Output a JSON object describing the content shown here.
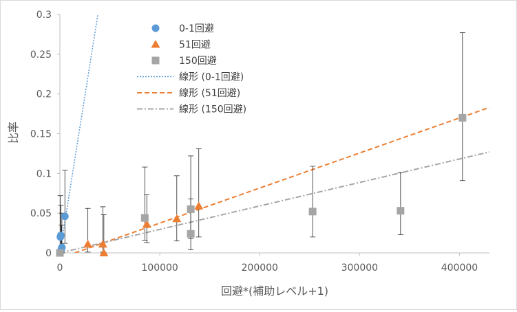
{
  "chart_data": {
    "type": "scatter",
    "title": "",
    "xlabel": "回避*(補助レベル+1)",
    "ylabel": "比率",
    "xlim": [
      0,
      430000
    ],
    "ylim": [
      0,
      0.3
    ],
    "x_ticks": [
      0,
      100000,
      200000,
      300000,
      400000
    ],
    "x_tick_labels": [
      "0",
      "100000",
      "200000",
      "300000",
      "400000"
    ],
    "y_ticks": [
      0,
      0.05,
      0.1,
      0.15,
      0.2,
      0.25,
      0.3
    ],
    "y_tick_labels": [
      "0",
      "0.05",
      "0.1",
      "0.15",
      "0.2",
      "0.25",
      "0.3"
    ],
    "grid": "horizontal-none",
    "legend_position": "top-center",
    "series": [
      {
        "name": "0-1回避",
        "marker": "circle",
        "color": "#5B9BD5",
        "points": [
          {
            "x": 500,
            "y": 0.02,
            "lo": 0.0,
            "hi": 0.072
          },
          {
            "x": 1000,
            "y": 0.022,
            "lo": 0.0,
            "hi": 0.06
          },
          {
            "x": 1500,
            "y": 0.005,
            "lo": 0.0,
            "hi": 0.035
          },
          {
            "x": 2000,
            "y": 0.007,
            "lo": 0.0,
            "hi": 0.05
          },
          {
            "x": 5000,
            "y": 0.046,
            "lo": 0.012,
            "hi": 0.104
          }
        ]
      },
      {
        "name": "51回避",
        "marker": "triangle",
        "color": "#ED7D31",
        "points": [
          {
            "x": 28000,
            "y": 0.011,
            "lo": 0.001,
            "hi": 0.056
          },
          {
            "x": 43000,
            "y": 0.011,
            "lo": 0.001,
            "hi": 0.058
          },
          {
            "x": 44000,
            "y": 0.0,
            "lo": 0.0,
            "hi": 0.048
          },
          {
            "x": 87000,
            "y": 0.036,
            "lo": 0.013,
            "hi": 0.073
          },
          {
            "x": 117000,
            "y": 0.043,
            "lo": 0.015,
            "hi": 0.097
          },
          {
            "x": 139000,
            "y": 0.059,
            "lo": 0.02,
            "hi": 0.131
          }
        ]
      },
      {
        "name": "150回避",
        "marker": "square",
        "color": "#A5A5A5",
        "points": [
          {
            "x": 0,
            "y": 0.0,
            "lo": 0.0,
            "hi": 0.0
          },
          {
            "x": 85000,
            "y": 0.044,
            "lo": 0.016,
            "hi": 0.108
          },
          {
            "x": 131000,
            "y": 0.055,
            "lo": 0.018,
            "hi": 0.122
          },
          {
            "x": 131000,
            "y": 0.024,
            "lo": 0.004,
            "hi": 0.068
          },
          {
            "x": 253000,
            "y": 0.052,
            "lo": 0.02,
            "hi": 0.109
          },
          {
            "x": 341000,
            "y": 0.053,
            "lo": 0.023,
            "hi": 0.101
          },
          {
            "x": 403000,
            "y": 0.17,
            "lo": 0.091,
            "hi": 0.277
          }
        ]
      }
    ],
    "trendlines": [
      {
        "name": "線形 (0-1回避)",
        "style": "dotted",
        "color": "#5B9BD5",
        "x0": 0,
        "y0": 0.0,
        "x1": 38000,
        "y1": 0.3
      },
      {
        "name": "線形 (51回避)",
        "style": "dashed",
        "color": "#ED7D31",
        "x0": 15000,
        "y0": 0.0,
        "x1": 430000,
        "y1": 0.183
      },
      {
        "name": "線形 (150回避)",
        "style": "dashdot",
        "color": "#A5A5A5",
        "x0": 0,
        "y0": 0.0,
        "x1": 430000,
        "y1": 0.127
      }
    ]
  }
}
